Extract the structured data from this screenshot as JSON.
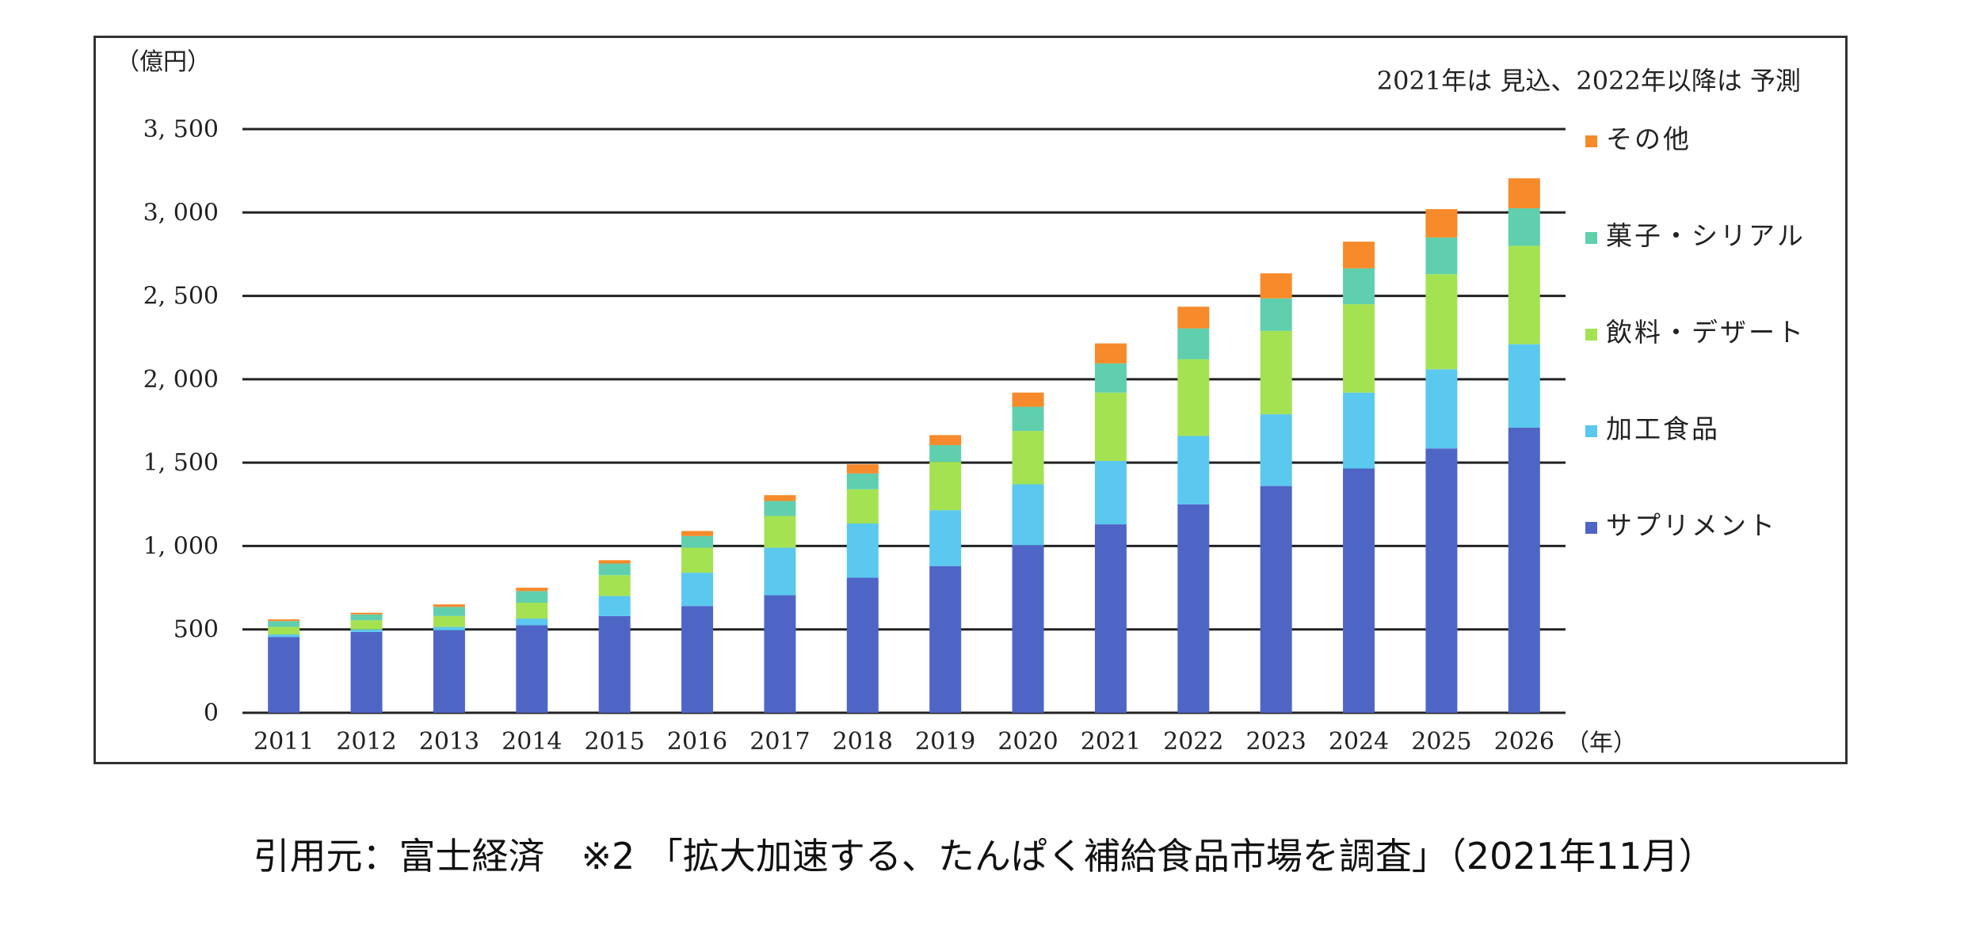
{
  "chart_data": {
    "type": "bar",
    "stacked": true,
    "ylabel": "（億円）",
    "xlabel": "（年）",
    "note": "2021年は 見込、2022年以降は 予測",
    "ylim": [
      0,
      3500
    ],
    "yticks": [
      0,
      500,
      1000,
      1500,
      2000,
      2500,
      3000,
      3500
    ],
    "ytick_labels": [
      "0",
      "500",
      "1, 000",
      "1, 500",
      "2, 000",
      "2, 500",
      "3, 000",
      "3, 500"
    ],
    "grid": true,
    "legend_position": "right",
    "categories": [
      "2011",
      "2012",
      "2013",
      "2014",
      "2015",
      "2016",
      "2017",
      "2018",
      "2019",
      "2020",
      "2021",
      "2022",
      "2023",
      "2024",
      "2025",
      "2026"
    ],
    "series": [
      {
        "name": "サプリメント",
        "color": "#4f65c6",
        "values": [
          455,
          485,
          495,
          525,
          580,
          640,
          705,
          810,
          880,
          1005,
          1130,
          1250,
          1360,
          1465,
          1585,
          1710
        ]
      },
      {
        "name": "加工食品",
        "color": "#5bc8ef",
        "values": [
          15,
          15,
          20,
          40,
          120,
          200,
          285,
          325,
          335,
          365,
          380,
          410,
          430,
          455,
          475,
          500
        ]
      },
      {
        "name": "飲料・デザート",
        "color": "#a5e252",
        "values": [
          45,
          55,
          65,
          95,
          125,
          150,
          190,
          205,
          290,
          320,
          410,
          460,
          500,
          530,
          570,
          590
        ]
      },
      {
        "name": "菓子・シリアル",
        "color": "#5fcfae",
        "values": [
          35,
          35,
          55,
          70,
          70,
          70,
          90,
          95,
          100,
          145,
          175,
          185,
          195,
          215,
          220,
          225
        ]
      },
      {
        "name": "その他",
        "color": "#f78a2a",
        "values": [
          10,
          10,
          15,
          20,
          20,
          30,
          35,
          55,
          60,
          85,
          120,
          130,
          150,
          160,
          170,
          180
        ]
      }
    ]
  },
  "caption": "引用元：富士経済　※2 「拡大加速する、たんぱく補給食品市場を調査」（2021年11月）"
}
